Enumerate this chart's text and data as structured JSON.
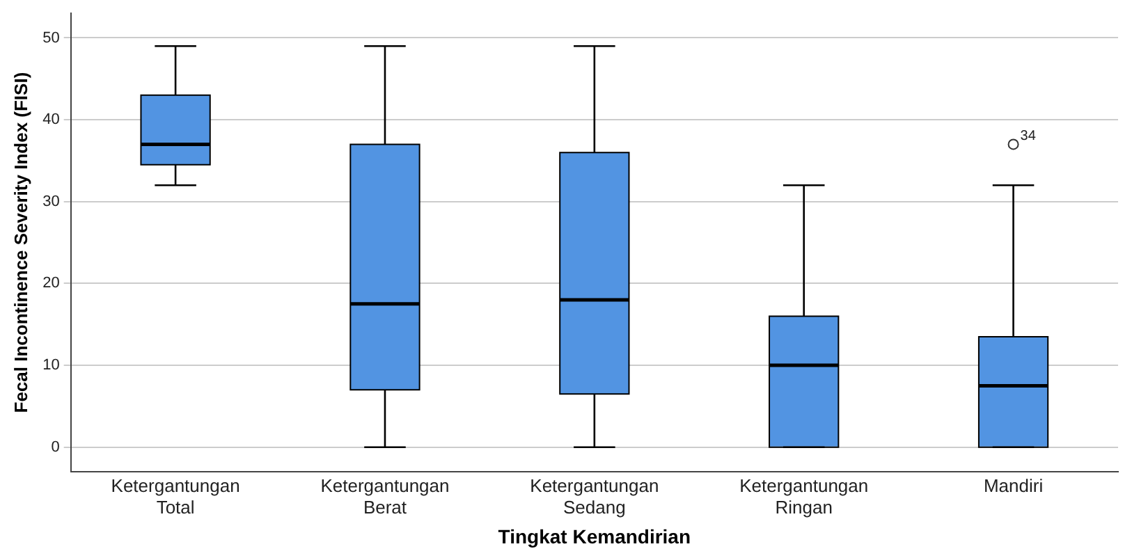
{
  "chart_data": {
    "type": "box",
    "xlabel": "Tingkat Kemandirian",
    "ylabel": "Fecal Incontinence Severity Index (FISI)",
    "categories": [
      "Ketergantungan Total",
      "Ketergantungan Berat",
      "Ketergantungan Sedang",
      "Ketergantungan Ringan",
      "Mandiri"
    ],
    "color": "#5294e2",
    "boxes": [
      {
        "low": 32,
        "q1": 34.5,
        "median": 37,
        "q3": 43,
        "high": 49
      },
      {
        "low": 0,
        "q1": 7,
        "median": 17.5,
        "q3": 37,
        "high": 49
      },
      {
        "low": 0,
        "q1": 6.5,
        "median": 18,
        "q3": 36,
        "high": 49
      },
      {
        "low": 0,
        "q1": 0,
        "median": 10,
        "q3": 16,
        "high": 32
      },
      {
        "low": 0,
        "q1": 0,
        "median": 7.5,
        "q3": 13.5,
        "high": 32,
        "outliers": [
          37
        ]
      }
    ],
    "ylim": [
      -3,
      53
    ],
    "yticks": [
      0,
      10,
      20,
      30,
      40,
      50
    ],
    "grid": "y",
    "legend": false,
    "marker": "circle",
    "annotations": [
      "34"
    ]
  }
}
